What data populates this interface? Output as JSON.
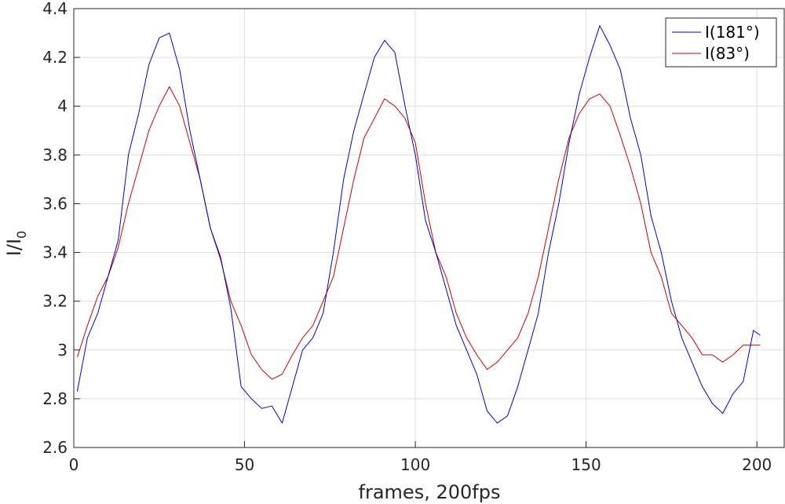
{
  "chart_data": {
    "type": "line",
    "xlabel": "frames, 200fps",
    "ylabel_main": "I/I",
    "ylabel_sub": "0",
    "xlim": [
      0,
      208
    ],
    "ylim": [
      2.6,
      4.4
    ],
    "xticks": [
      0,
      50,
      100,
      150,
      200
    ],
    "yticks": [
      2.6,
      2.8,
      3,
      3.2,
      3.4,
      3.6,
      3.8,
      4,
      4.2,
      4.4
    ],
    "ytick_labels": [
      "2.6",
      "2.8",
      "3",
      "3.2",
      "3.4",
      "3.6",
      "3.8",
      "4",
      "4.2",
      "4.4"
    ],
    "xtick_labels": [
      "0",
      "50",
      "100",
      "150",
      "200"
    ],
    "grid": true,
    "legend_position": "top-right",
    "series": [
      {
        "name": "I(181°)",
        "color": "#0000cc",
        "x": [
          1,
          4,
          7,
          10,
          13,
          16,
          19,
          22,
          25,
          28,
          31,
          34,
          37,
          40,
          43,
          46,
          49,
          52,
          55,
          58,
          61,
          64,
          67,
          70,
          73,
          76,
          79,
          82,
          85,
          88,
          91,
          94,
          97,
          100,
          103,
          106,
          109,
          112,
          115,
          118,
          121,
          124,
          127,
          130,
          133,
          136,
          139,
          142,
          145,
          148,
          151,
          154,
          157,
          160,
          163,
          166,
          169,
          172,
          175,
          178,
          181,
          184,
          187,
          190,
          193,
          196,
          199,
          201
        ],
        "y": [
          2.83,
          3.05,
          3.15,
          3.3,
          3.45,
          3.8,
          3.97,
          4.17,
          4.28,
          4.3,
          4.15,
          3.9,
          3.7,
          3.5,
          3.38,
          3.17,
          2.85,
          2.8,
          2.76,
          2.77,
          2.7,
          2.85,
          3.0,
          3.05,
          3.15,
          3.4,
          3.7,
          3.9,
          4.05,
          4.2,
          4.27,
          4.22,
          4.0,
          3.8,
          3.53,
          3.4,
          3.25,
          3.1,
          3.0,
          2.9,
          2.75,
          2.7,
          2.73,
          2.85,
          3.0,
          3.15,
          3.4,
          3.6,
          3.85,
          4.05,
          4.2,
          4.33,
          4.25,
          4.15,
          3.95,
          3.8,
          3.55,
          3.4,
          3.2,
          3.05,
          2.95,
          2.85,
          2.78,
          2.74,
          2.82,
          2.87,
          3.08,
          3.06
        ]
      },
      {
        "name": "I(83°)",
        "color": "#cc0000",
        "x": [
          1,
          4,
          7,
          10,
          13,
          16,
          19,
          22,
          25,
          28,
          31,
          34,
          37,
          40,
          43,
          46,
          49,
          52,
          55,
          58,
          61,
          64,
          67,
          70,
          73,
          76,
          79,
          82,
          85,
          88,
          91,
          94,
          97,
          100,
          103,
          106,
          109,
          112,
          115,
          118,
          121,
          124,
          127,
          130,
          133,
          136,
          139,
          142,
          145,
          148,
          151,
          154,
          157,
          160,
          163,
          166,
          169,
          172,
          175,
          178,
          181,
          184,
          187,
          190,
          193,
          196,
          199,
          201
        ],
        "y": [
          2.97,
          3.1,
          3.22,
          3.3,
          3.42,
          3.6,
          3.75,
          3.9,
          4.0,
          4.08,
          4.0,
          3.85,
          3.7,
          3.5,
          3.37,
          3.2,
          3.1,
          2.98,
          2.92,
          2.88,
          2.9,
          2.98,
          3.05,
          3.1,
          3.2,
          3.3,
          3.5,
          3.7,
          3.87,
          3.95,
          4.03,
          4.0,
          3.95,
          3.85,
          3.6,
          3.4,
          3.3,
          3.15,
          3.05,
          2.98,
          2.92,
          2.95,
          3.0,
          3.05,
          3.15,
          3.3,
          3.5,
          3.7,
          3.87,
          3.97,
          4.03,
          4.05,
          4.0,
          3.88,
          3.75,
          3.6,
          3.4,
          3.3,
          3.15,
          3.1,
          3.05,
          2.98,
          2.98,
          2.95,
          2.98,
          3.02,
          3.02,
          3.02
        ]
      }
    ]
  }
}
